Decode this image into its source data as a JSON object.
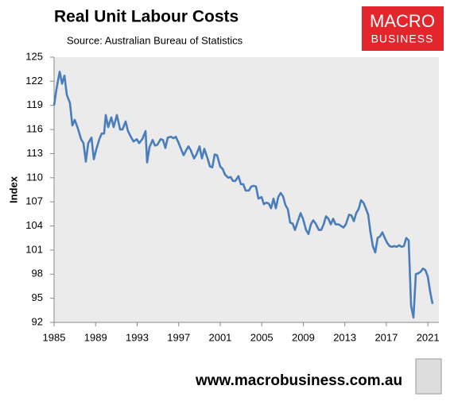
{
  "chart_data": {
    "type": "line",
    "title": "Real Unit Labour Costs",
    "subtitle": "Source: Australian Bureau of Statistics",
    "y_label": "Index",
    "logo": [
      "MACRO",
      "BUSINESS"
    ],
    "footer": "www.macrobusiness.com.au",
    "xlim": [
      1985,
      2022.06
    ],
    "xticks": [
      1985,
      1989,
      1993,
      1997,
      2001,
      2005,
      2009,
      2013,
      2017,
      2021
    ],
    "ylim": [
      92,
      125
    ],
    "yticks": [
      92,
      95,
      98,
      101,
      104,
      107,
      110,
      113,
      116,
      119,
      122,
      125
    ],
    "grid": false,
    "series": [
      {
        "name": "Real Unit Labour Costs",
        "color": "#4a7ebb",
        "x": [
          1985,
          1985.23,
          1985.54,
          1985.77,
          1986,
          1986.23,
          1986.53,
          1986.76,
          1986.99,
          1987.3,
          1987.6,
          1987.83,
          1988.06,
          1988.29,
          1988.6,
          1988.83,
          1989.06,
          1989.36,
          1989.59,
          1989.82,
          1989.98,
          1990.21,
          1990.51,
          1990.74,
          1991.05,
          1991.36,
          1991.59,
          1991.89,
          1992.12,
          1992.43,
          1992.66,
          1992.96,
          1993.19,
          1993.5,
          1993.81,
          1993.96,
          1994.19,
          1994.49,
          1994.72,
          1994.95,
          1995.26,
          1995.49,
          1995.72,
          1995.95,
          1996.26,
          1996.49,
          1996.72,
          1996.94,
          1997.25,
          1997.48,
          1997.71,
          1997.94,
          1998.17,
          1998.48,
          1998.71,
          1999.01,
          1999.24,
          1999.47,
          1999.78,
          2000.01,
          2000.24,
          2000.47,
          2000.7,
          2001,
          2001.23,
          2001.46,
          2001.77,
          2002,
          2002.23,
          2002.46,
          2002.76,
          2002.99,
          2003.22,
          2003.45,
          2003.76,
          2003.99,
          2004.22,
          2004.45,
          2004.68,
          2004.98,
          2005.21,
          2005.44,
          2005.67,
          2005.9,
          2006.13,
          2006.36,
          2006.59,
          2006.82,
          2007.05,
          2007.28,
          2007.51,
          2007.74,
          2007.97,
          2008.2,
          2008.43,
          2008.74,
          2008.97,
          2009.27,
          2009.5,
          2009.73,
          2009.96,
          2010.19,
          2010.5,
          2010.73,
          2010.96,
          2011.19,
          2011.42,
          2011.65,
          2011.88,
          2012.11,
          2012.41,
          2012.64,
          2012.87,
          2013.1,
          2013.41,
          2013.64,
          2013.87,
          2014.1,
          2014.33,
          2014.56,
          2014.79,
          2015.02,
          2015.25,
          2015.47,
          2015.7,
          2015.93,
          2016.16,
          2016.39,
          2016.62,
          2016.85,
          2017.08,
          2017.31,
          2017.54,
          2017.77,
          2018,
          2018.23,
          2018.46,
          2018.69,
          2018.92,
          2019.15,
          2019.38,
          2019.61,
          2019.84,
          2020.07,
          2020.3,
          2020.53,
          2020.76,
          2020.99,
          2021.22,
          2021.45
        ],
        "values": [
          119,
          121,
          123.2,
          121.7,
          122.7,
          120.3,
          119.3,
          116.5,
          117.2,
          116.1,
          114.8,
          114.3,
          112,
          114.3,
          115,
          112.3,
          113.5,
          114.8,
          115.5,
          115.5,
          117.8,
          116.3,
          117.5,
          116.3,
          117.8,
          116,
          116,
          117,
          115.8,
          115,
          114.5,
          114.8,
          114.3,
          114.8,
          115.8,
          111.9,
          113.8,
          114.7,
          114,
          114.1,
          114.8,
          114.7,
          113.7,
          115,
          115.1,
          114.9,
          115.1,
          114.5,
          113.5,
          112.8,
          113.4,
          113.9,
          113.4,
          112.4,
          112.9,
          113.9,
          112.4,
          113.6,
          112.4,
          111.4,
          111.3,
          112.9,
          112.8,
          111.4,
          111.1,
          110.4,
          110,
          110.1,
          109.6,
          109.6,
          110.2,
          109.2,
          109.2,
          108.4,
          108.4,
          108.9,
          109,
          108.9,
          107.4,
          107.6,
          106.7,
          106.9,
          106.8,
          106.2,
          107.4,
          106.2,
          107.6,
          108.1,
          107.7,
          106.6,
          106.1,
          104.4,
          104.3,
          103.5,
          104.4,
          105.6,
          104.9,
          103.5,
          103,
          104.2,
          104.7,
          104.3,
          103.5,
          103.5,
          104.2,
          105.2,
          104.9,
          104.2,
          104.9,
          104.2,
          104.2,
          104,
          103.8,
          104.2,
          105.4,
          105.3,
          104.6,
          105.6,
          106.1,
          107.2,
          106.9,
          106.2,
          105.4,
          103.2,
          101.5,
          100.7,
          102.5,
          102.7,
          103.2,
          102.5,
          101.9,
          101.5,
          101.4,
          101.5,
          101.4,
          101.6,
          101.4,
          101.5,
          102.5,
          102.2,
          94.1,
          92.6,
          98,
          98.1,
          98.3,
          98.7,
          98.5,
          97.7,
          95.8,
          94.3
        ]
      }
    ]
  }
}
